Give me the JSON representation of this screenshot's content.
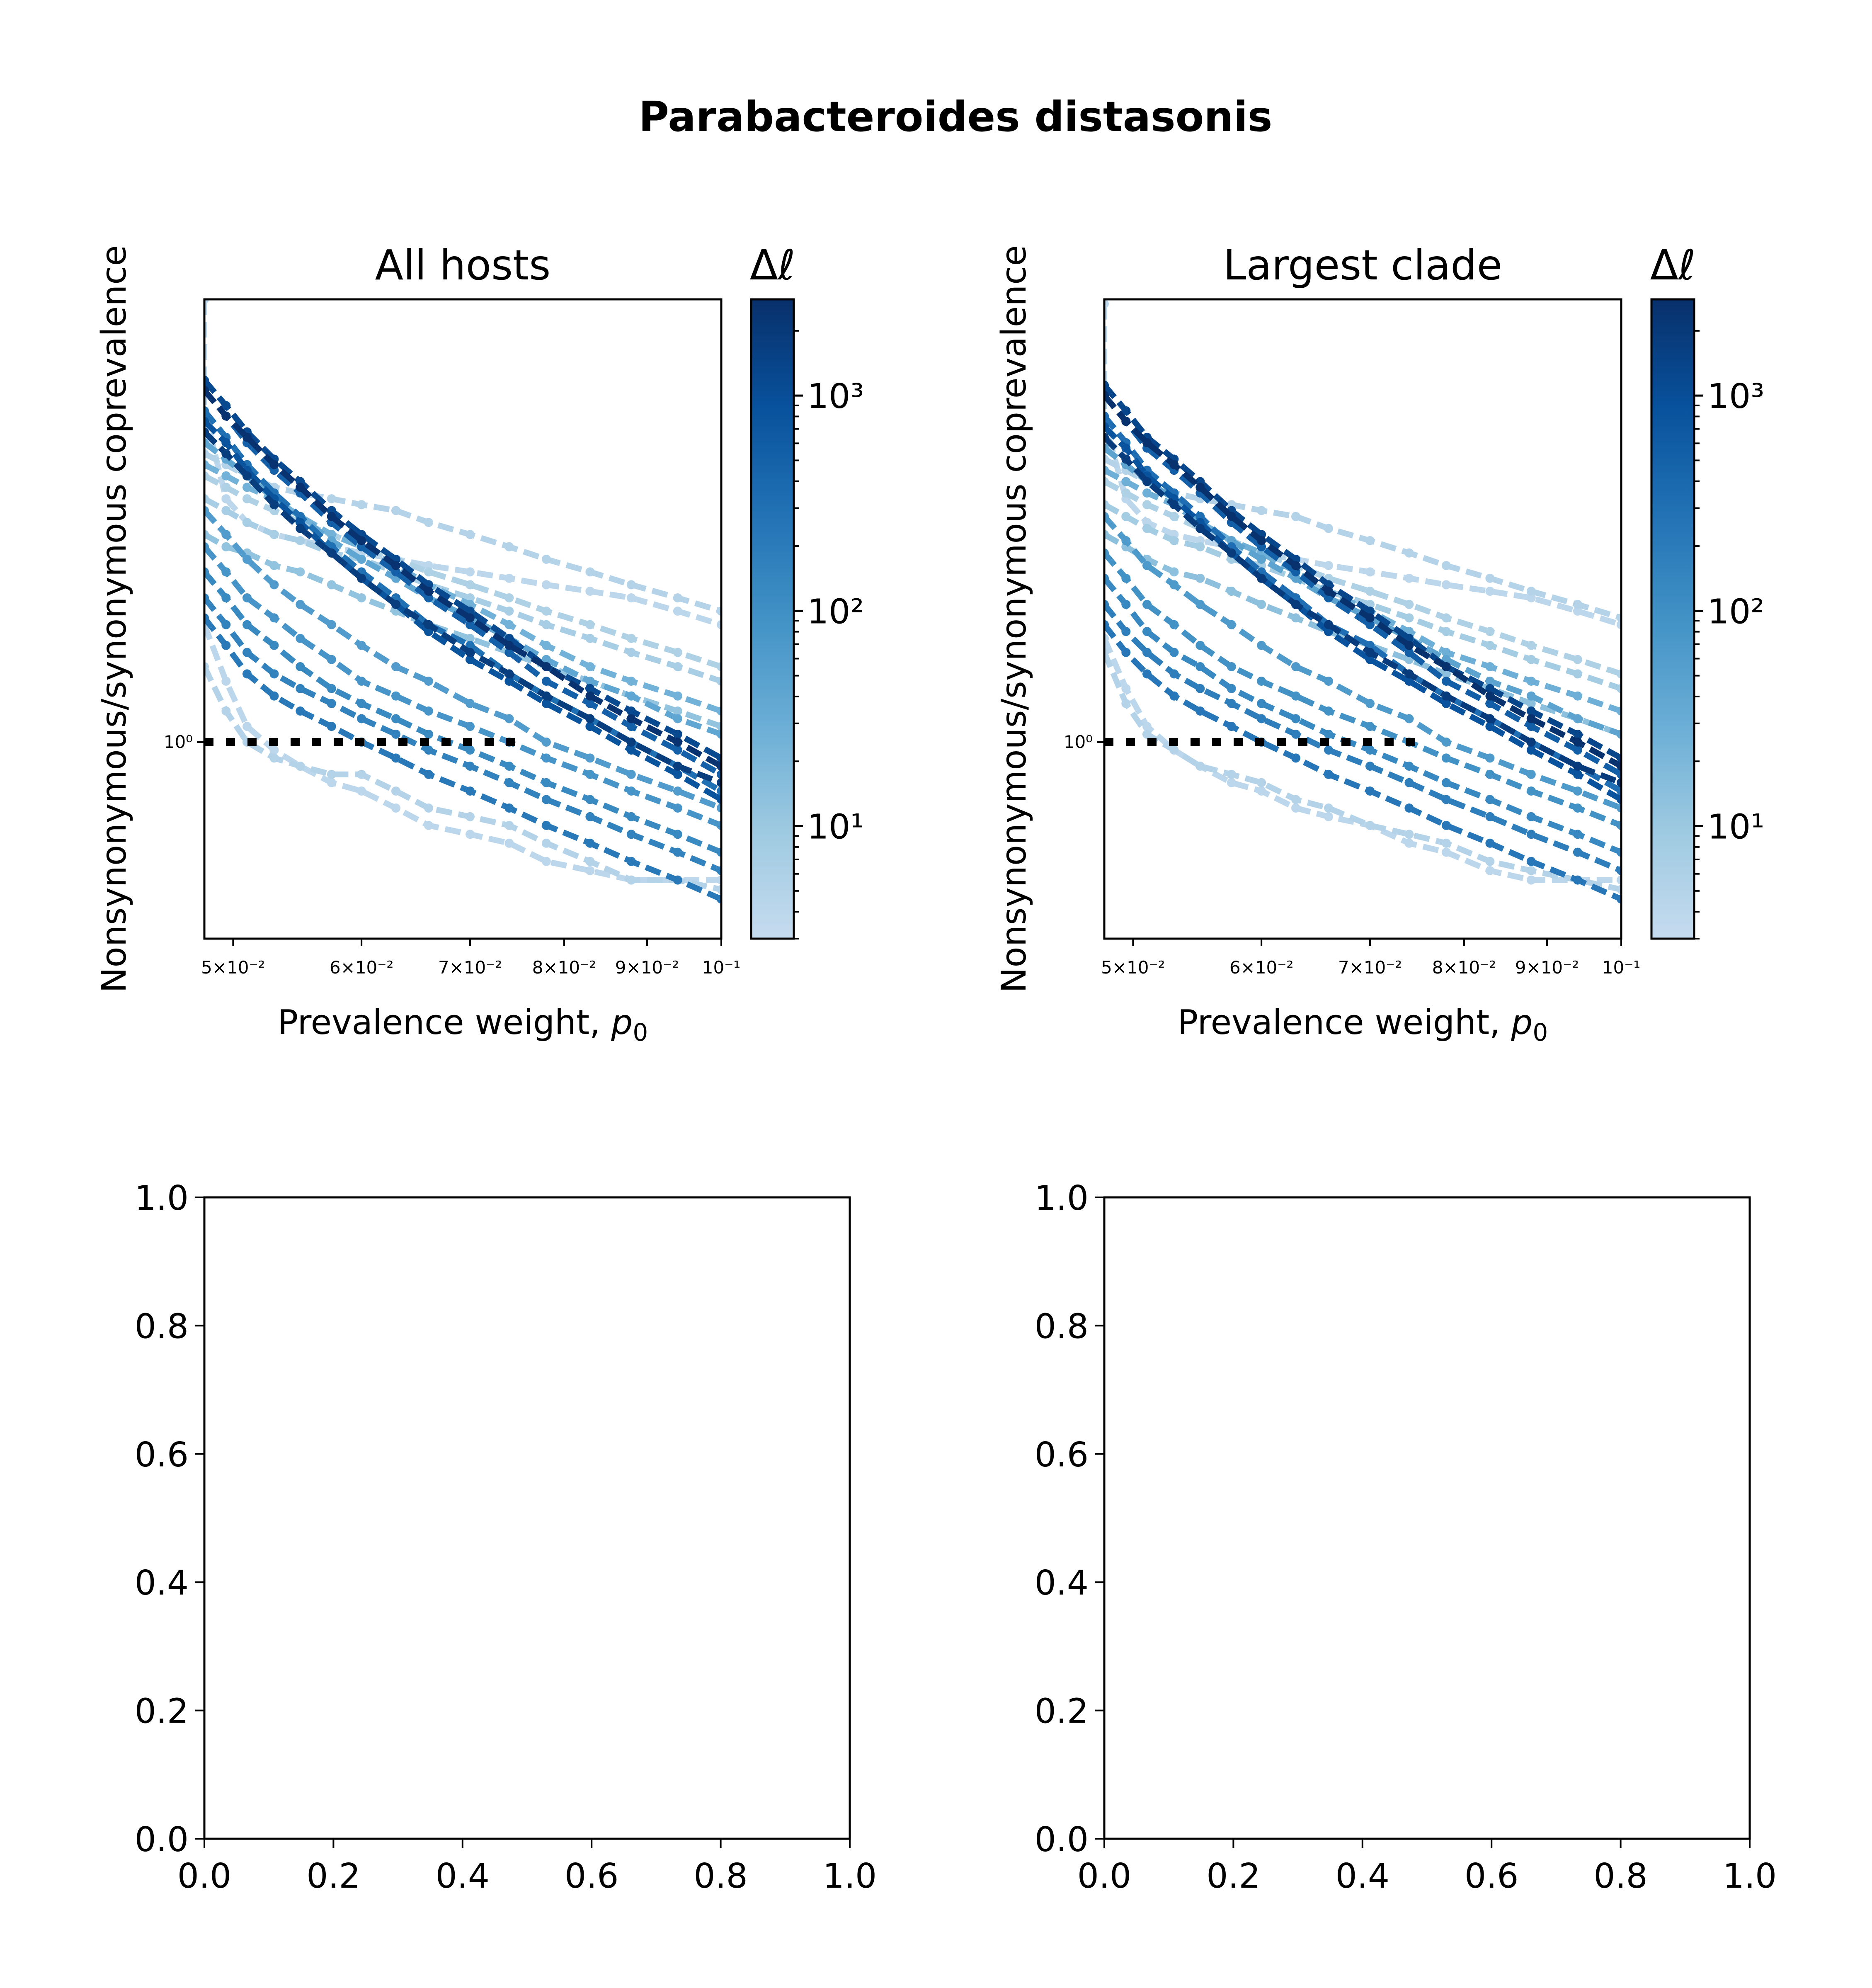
{
  "figure": {
    "title": "Parabacteroides distasonis",
    "colormap": [
      "#c6dbef",
      "#9ecae1",
      "#6baed6",
      "#4292c6",
      "#2171b5",
      "#08519c",
      "#08306b"
    ]
  },
  "chart_data": [
    {
      "type": "line",
      "title": "All hosts",
      "xlabel": "Prevalence weight, p0",
      "ylabel": "Nonsynonymous/synonymous coprevalence",
      "xscale": "log",
      "yscale": "log",
      "xlim": [
        0.048,
        0.1
      ],
      "ylim": [
        0.78,
        1.75
      ],
      "x_ticks": [
        {
          "value": 0.05,
          "label": "5×10⁻²"
        },
        {
          "value": 0.06,
          "label": "6×10⁻²"
        },
        {
          "value": 0.07,
          "label": "7×10⁻²"
        },
        {
          "value": 0.08,
          "label": "8×10⁻²"
        },
        {
          "value": 0.09,
          "label": "9×10⁻²"
        },
        {
          "value": 0.1,
          "label": "10⁻¹"
        }
      ],
      "y_ticks": [
        {
          "value": 1.0,
          "label": "10⁰"
        }
      ],
      "reference_line": {
        "y": 1.0,
        "style": "dotted",
        "color": "#000000"
      },
      "colorbar": {
        "title": "Δℓ",
        "scale": "log",
        "range": [
          3,
          2800
        ],
        "ticks": [
          {
            "value": 10,
            "label": "10¹"
          },
          {
            "value": 100,
            "label": "10²"
          },
          {
            "value": 1000,
            "label": "10³"
          }
        ]
      },
      "x": [
        0.048,
        0.0495,
        0.051,
        0.053,
        0.055,
        0.0575,
        0.06,
        0.063,
        0.066,
        0.07,
        0.074,
        0.078,
        0.083,
        0.088,
        0.094,
        0.1
      ],
      "series": [
        {
          "dl": 4,
          "spike": 1.75,
          "values": [
            1.52,
            1.36,
            1.32,
            1.3,
            1.29,
            1.28,
            1.27,
            1.26,
            1.25,
            1.24,
            1.23,
            1.22,
            1.21,
            1.2,
            1.18,
            1.16
          ]
        },
        {
          "dl": 5,
          "values": [
            1.44,
            1.42,
            1.4,
            1.38,
            1.37,
            1.36,
            1.35,
            1.34,
            1.32,
            1.3,
            1.28,
            1.26,
            1.24,
            1.22,
            1.2,
            1.18
          ]
        },
        {
          "dl": 6,
          "values": [
            1.4,
            1.38,
            1.36,
            1.34,
            1.32,
            1.3,
            1.28,
            1.26,
            1.24,
            1.22,
            1.2,
            1.18,
            1.16,
            1.14,
            1.12,
            1.1
          ]
        },
        {
          "dl": 7,
          "values": [
            1.36,
            1.34,
            1.32,
            1.3,
            1.29,
            1.27,
            1.26,
            1.24,
            1.22,
            1.2,
            1.18,
            1.16,
            1.14,
            1.12,
            1.1,
            1.08
          ]
        },
        {
          "dl": 12,
          "values": [
            1.3,
            1.28,
            1.27,
            1.25,
            1.24,
            1.22,
            1.2,
            1.18,
            1.16,
            1.14,
            1.12,
            1.1,
            1.08,
            1.06,
            1.04,
            1.02
          ]
        },
        {
          "dl": 5,
          "values": [
            1.1,
            1.04,
            1.0,
            0.98,
            0.97,
            0.96,
            0.96,
            0.94,
            0.92,
            0.91,
            0.9,
            0.88,
            0.86,
            0.84,
            0.84,
            0.83
          ]
        },
        {
          "dl": 4,
          "values": [
            1.16,
            1.08,
            1.02,
            0.99,
            0.97,
            0.95,
            0.94,
            0.92,
            0.9,
            0.89,
            0.88,
            0.86,
            0.85,
            0.84,
            0.84,
            0.84
          ]
        },
        {
          "dl": 25,
          "values": [
            1.42,
            1.4,
            1.38,
            1.36,
            1.33,
            1.3,
            1.28,
            1.25,
            1.22,
            1.19,
            1.16,
            1.13,
            1.1,
            1.08,
            1.06,
            1.04
          ]
        },
        {
          "dl": 40,
          "values": [
            1.46,
            1.43,
            1.4,
            1.36,
            1.33,
            1.29,
            1.26,
            1.23,
            1.2,
            1.17,
            1.14,
            1.11,
            1.08,
            1.06,
            1.03,
            1.01
          ]
        },
        {
          "dl": 60,
          "values": [
            1.34,
            1.3,
            1.26,
            1.22,
            1.19,
            1.16,
            1.13,
            1.1,
            1.08,
            1.05,
            1.03,
            1.0,
            0.98,
            0.96,
            0.94,
            0.92
          ]
        },
        {
          "dl": 80,
          "values": [
            1.28,
            1.24,
            1.2,
            1.17,
            1.14,
            1.11,
            1.08,
            1.06,
            1.04,
            1.02,
            1.0,
            0.98,
            0.96,
            0.94,
            0.92,
            0.9
          ]
        },
        {
          "dl": 120,
          "values": [
            1.24,
            1.2,
            1.16,
            1.13,
            1.1,
            1.07,
            1.05,
            1.03,
            1.01,
            0.99,
            0.97,
            0.95,
            0.93,
            0.91,
            0.89,
            0.87
          ]
        },
        {
          "dl": 160,
          "values": [
            1.2,
            1.16,
            1.12,
            1.09,
            1.07,
            1.05,
            1.03,
            1.01,
            0.99,
            0.97,
            0.95,
            0.93,
            0.91,
            0.89,
            0.87,
            0.85
          ]
        },
        {
          "dl": 220,
          "values": [
            1.17,
            1.13,
            1.09,
            1.06,
            1.04,
            1.02,
            1.0,
            0.98,
            0.96,
            0.94,
            0.92,
            0.9,
            0.88,
            0.86,
            0.84,
            0.82
          ]
        },
        {
          "dl": 300,
          "values": [
            1.52,
            1.47,
            1.42,
            1.37,
            1.33,
            1.28,
            1.24,
            1.2,
            1.16,
            1.13,
            1.09,
            1.06,
            1.03,
            1.0,
            0.97,
            0.94
          ]
        },
        {
          "dl": 500,
          "values": [
            1.56,
            1.51,
            1.46,
            1.41,
            1.37,
            1.32,
            1.28,
            1.24,
            1.2,
            1.16,
            1.12,
            1.08,
            1.05,
            1.02,
            0.99,
            0.96
          ]
        },
        {
          "dl": 800,
          "values": [
            1.5,
            1.46,
            1.41,
            1.36,
            1.32,
            1.27,
            1.23,
            1.19,
            1.15,
            1.11,
            1.08,
            1.05,
            1.02,
            0.99,
            0.96,
            0.93
          ]
        },
        {
          "dl": 1200,
          "values": [
            1.58,
            1.53,
            1.48,
            1.43,
            1.39,
            1.34,
            1.3,
            1.26,
            1.22,
            1.18,
            1.14,
            1.1,
            1.07,
            1.04,
            1.01,
            0.98
          ]
        },
        {
          "dl": 1800,
          "values": [
            1.48,
            1.44,
            1.4,
            1.35,
            1.31,
            1.27,
            1.23,
            1.19,
            1.16,
            1.12,
            1.09,
            1.06,
            1.03,
            1.0,
            0.97,
            0.95
          ]
        },
        {
          "dl": 2500,
          "values": [
            1.56,
            1.51,
            1.47,
            1.42,
            1.38,
            1.33,
            1.29,
            1.25,
            1.21,
            1.17,
            1.13,
            1.1,
            1.06,
            1.03,
            1.0,
            0.97
          ]
        }
      ]
    },
    {
      "type": "line",
      "title": "Largest clade",
      "xlabel": "Prevalence weight, p0",
      "ylabel": "Nonsynonymous/synonymous coprevalence",
      "xscale": "log",
      "yscale": "log",
      "xlim": [
        0.048,
        0.1
      ],
      "ylim": [
        0.78,
        1.75
      ],
      "x_ticks": [
        {
          "value": 0.05,
          "label": "5×10⁻²"
        },
        {
          "value": 0.06,
          "label": "6×10⁻²"
        },
        {
          "value": 0.07,
          "label": "7×10⁻²"
        },
        {
          "value": 0.08,
          "label": "8×10⁻²"
        },
        {
          "value": 0.09,
          "label": "9×10⁻²"
        },
        {
          "value": 0.1,
          "label": "10⁻¹"
        }
      ],
      "y_ticks": [
        {
          "value": 1.0,
          "label": "10⁰"
        }
      ],
      "reference_line": {
        "y": 1.0,
        "style": "dotted",
        "color": "#000000"
      },
      "colorbar": {
        "title": "Δℓ",
        "scale": "log",
        "range": [
          3,
          2800
        ],
        "ticks": [
          {
            "value": 10,
            "label": "10¹"
          },
          {
            "value": 100,
            "label": "10²"
          },
          {
            "value": 1000,
            "label": "10³"
          }
        ]
      },
      "x": [
        0.048,
        0.0495,
        0.051,
        0.053,
        0.055,
        0.0575,
        0.06,
        0.063,
        0.066,
        0.07,
        0.074,
        0.078,
        0.083,
        0.088,
        0.094,
        0.1
      ],
      "series": [
        {
          "dl": 4,
          "spike": 1.74,
          "values": [
            1.5,
            1.36,
            1.32,
            1.3,
            1.29,
            1.28,
            1.27,
            1.26,
            1.25,
            1.24,
            1.23,
            1.22,
            1.21,
            1.2,
            1.18,
            1.16
          ]
        },
        {
          "dl": 5,
          "values": [
            1.43,
            1.41,
            1.39,
            1.37,
            1.36,
            1.35,
            1.34,
            1.33,
            1.31,
            1.29,
            1.27,
            1.25,
            1.23,
            1.21,
            1.19,
            1.17
          ]
        },
        {
          "dl": 6,
          "values": [
            1.39,
            1.37,
            1.35,
            1.33,
            1.31,
            1.29,
            1.27,
            1.25,
            1.23,
            1.21,
            1.19,
            1.17,
            1.15,
            1.13,
            1.11,
            1.09
          ]
        },
        {
          "dl": 8,
          "values": [
            1.35,
            1.33,
            1.31,
            1.29,
            1.28,
            1.26,
            1.25,
            1.23,
            1.21,
            1.19,
            1.17,
            1.15,
            1.13,
            1.11,
            1.09,
            1.07
          ]
        },
        {
          "dl": 14,
          "values": [
            1.3,
            1.28,
            1.26,
            1.24,
            1.23,
            1.21,
            1.19,
            1.17,
            1.15,
            1.13,
            1.11,
            1.09,
            1.07,
            1.05,
            1.03,
            1.01
          ]
        },
        {
          "dl": 5,
          "values": [
            1.12,
            1.05,
            1.01,
            0.99,
            0.97,
            0.96,
            0.95,
            0.93,
            0.92,
            0.9,
            0.89,
            0.88,
            0.86,
            0.85,
            0.84,
            0.83
          ]
        },
        {
          "dl": 4,
          "values": [
            1.14,
            1.07,
            1.02,
            0.99,
            0.97,
            0.95,
            0.94,
            0.92,
            0.91,
            0.9,
            0.88,
            0.87,
            0.85,
            0.84,
            0.84,
            0.84
          ]
        },
        {
          "dl": 28,
          "values": [
            1.41,
            1.39,
            1.37,
            1.35,
            1.32,
            1.29,
            1.27,
            1.24,
            1.21,
            1.18,
            1.15,
            1.12,
            1.1,
            1.08,
            1.06,
            1.04
          ]
        },
        {
          "dl": 45,
          "values": [
            1.45,
            1.42,
            1.39,
            1.36,
            1.32,
            1.29,
            1.26,
            1.23,
            1.2,
            1.17,
            1.14,
            1.11,
            1.08,
            1.06,
            1.03,
            1.01
          ]
        },
        {
          "dl": 65,
          "values": [
            1.33,
            1.29,
            1.25,
            1.22,
            1.19,
            1.16,
            1.13,
            1.1,
            1.08,
            1.05,
            1.03,
            1.0,
            0.98,
            0.96,
            0.94,
            0.92
          ]
        },
        {
          "dl": 90,
          "values": [
            1.27,
            1.23,
            1.19,
            1.16,
            1.13,
            1.1,
            1.08,
            1.06,
            1.04,
            1.02,
            1.0,
            0.98,
            0.96,
            0.94,
            0.92,
            0.9
          ]
        },
        {
          "dl": 130,
          "values": [
            1.23,
            1.19,
            1.15,
            1.12,
            1.1,
            1.07,
            1.05,
            1.03,
            1.01,
            0.99,
            0.97,
            0.95,
            0.93,
            0.91,
            0.89,
            0.87
          ]
        },
        {
          "dl": 180,
          "values": [
            1.19,
            1.15,
            1.12,
            1.09,
            1.07,
            1.05,
            1.03,
            1.01,
            0.99,
            0.97,
            0.95,
            0.93,
            0.91,
            0.89,
            0.87,
            0.85
          ]
        },
        {
          "dl": 240,
          "values": [
            1.16,
            1.12,
            1.09,
            1.06,
            1.04,
            1.02,
            1.0,
            0.98,
            0.96,
            0.94,
            0.92,
            0.9,
            0.88,
            0.86,
            0.84,
            0.82
          ]
        },
        {
          "dl": 320,
          "values": [
            1.51,
            1.46,
            1.41,
            1.37,
            1.33,
            1.28,
            1.24,
            1.2,
            1.16,
            1.13,
            1.09,
            1.06,
            1.03,
            1.0,
            0.97,
            0.94
          ]
        },
        {
          "dl": 550,
          "values": [
            1.55,
            1.5,
            1.45,
            1.41,
            1.37,
            1.32,
            1.28,
            1.24,
            1.2,
            1.16,
            1.12,
            1.08,
            1.05,
            1.02,
            0.99,
            0.96
          ]
        },
        {
          "dl": 850,
          "values": [
            1.49,
            1.45,
            1.4,
            1.36,
            1.32,
            1.27,
            1.23,
            1.19,
            1.15,
            1.11,
            1.08,
            1.05,
            1.02,
            0.99,
            0.96,
            0.93
          ]
        },
        {
          "dl": 1300,
          "values": [
            1.57,
            1.52,
            1.47,
            1.43,
            1.39,
            1.34,
            1.3,
            1.26,
            1.22,
            1.18,
            1.14,
            1.1,
            1.07,
            1.04,
            1.01,
            0.98
          ]
        },
        {
          "dl": 1900,
          "values": [
            1.47,
            1.43,
            1.39,
            1.35,
            1.31,
            1.27,
            1.23,
            1.19,
            1.16,
            1.12,
            1.09,
            1.06,
            1.03,
            1.0,
            0.97,
            0.95
          ]
        },
        {
          "dl": 2600,
          "values": [
            1.55,
            1.5,
            1.46,
            1.42,
            1.38,
            1.33,
            1.29,
            1.25,
            1.21,
            1.17,
            1.13,
            1.1,
            1.06,
            1.03,
            1.0,
            0.97
          ]
        }
      ]
    },
    {
      "type": "line",
      "title": "",
      "xlim": [
        0.0,
        1.0
      ],
      "ylim": [
        0.0,
        1.0
      ],
      "x_ticks": [
        "0.0",
        "0.2",
        "0.4",
        "0.6",
        "0.8",
        "1.0"
      ],
      "y_ticks": [
        "0.0",
        "0.2",
        "0.4",
        "0.6",
        "0.8",
        "1.0"
      ],
      "series": []
    },
    {
      "type": "line",
      "title": "",
      "xlim": [
        0.0,
        1.0
      ],
      "ylim": [
        0.0,
        1.0
      ],
      "x_ticks": [
        "0.0",
        "0.2",
        "0.4",
        "0.6",
        "0.8",
        "1.0"
      ],
      "y_ticks": [
        "0.0",
        "0.2",
        "0.4",
        "0.6",
        "0.8",
        "1.0"
      ],
      "series": []
    }
  ]
}
